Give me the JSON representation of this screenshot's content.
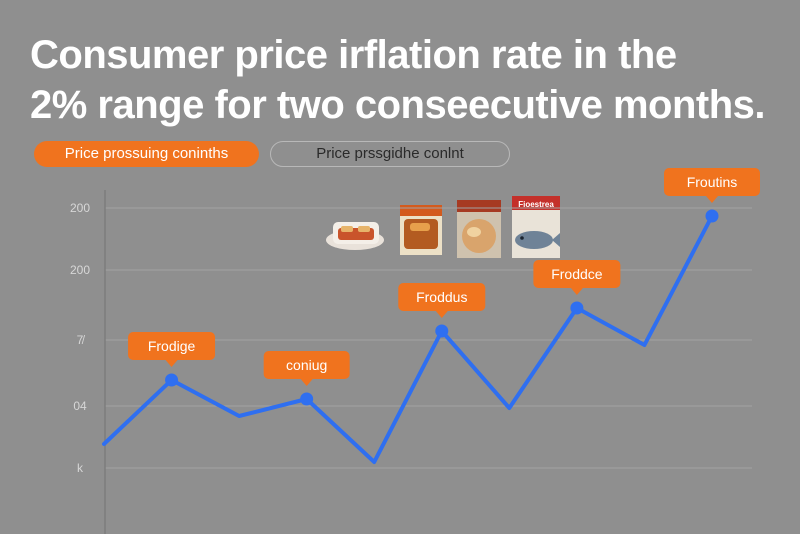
{
  "header": {
    "title_line1": "Consumer price irflation rate in the",
    "title_line2": "2% range for two conseecutive months."
  },
  "toggles": {
    "active_label": "Price prossuing coninths",
    "inactive_label": "Price prssgidhe conlnt"
  },
  "products": {
    "icons": [
      "food-tray-icon",
      "boxed-meal-icon",
      "packaged-food-icon",
      "fish-package-icon"
    ],
    "fish_package_text": "Fioestrea"
  },
  "colors": {
    "background": "#8f8f8f",
    "line": "#2f6ff0",
    "accent": "#f0731e",
    "grid": "#a3a3a3",
    "text": "#ffffff"
  },
  "chart_data": {
    "type": "line",
    "title": "Consumer price irflation rate in the 2% range for two conseecutive months.",
    "y_tick_labels": [
      "200",
      "200",
      "7̸",
      "04",
      "k"
    ],
    "x_axis_line": true,
    "grid": true,
    "series": [
      {
        "values": [
          12,
          76,
          40,
          57,
          -6,
          125,
          48,
          148,
          111,
          240
        ]
      }
    ],
    "ylim": [
      -40,
      260
    ],
    "annotations": [
      {
        "point_index": 1,
        "label": "Frodige"
      },
      {
        "point_index": 3,
        "label": "coniug"
      },
      {
        "point_index": 5,
        "label": "Froddus"
      },
      {
        "point_index": 7,
        "label": "Froddce"
      },
      {
        "point_index": 9,
        "label": "Froutins"
      }
    ]
  }
}
